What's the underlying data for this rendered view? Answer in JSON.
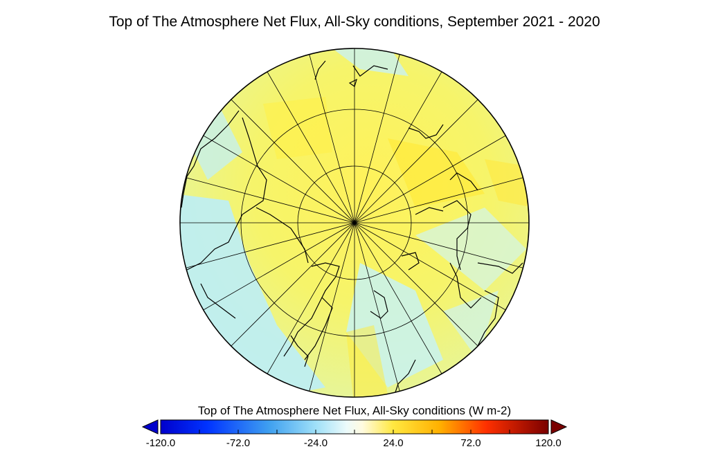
{
  "title": "Top of The Atmosphere Net Flux, All-Sky conditions, September 2021 - 2020",
  "map": {
    "projection": "north-polar-stereographic",
    "land_outline": "coastline",
    "colors": {
      "outline": "#000000",
      "gridlines": "#000000"
    }
  },
  "colorbar": {
    "title": "Top of The Atmosphere Net Flux, All-Sky conditions (W m-2)",
    "min": -120.0,
    "max": 120.0,
    "tick_labels": [
      "-120.0",
      "-72.0",
      "-24.0",
      "24.0",
      "72.0",
      "120.0"
    ],
    "extend": "both",
    "colors": {
      "low_end": "#0000cc",
      "mid_low": "#66c8f5",
      "center": "#ffffff",
      "mid_high": "#ffd700",
      "high_end": "#7a0000"
    }
  }
}
